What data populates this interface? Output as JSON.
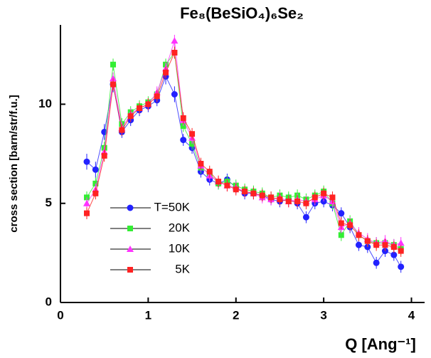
{
  "chart_data": {
    "type": "scatter",
    "title": "Fe₈(BeSiO₄)₆Se₂",
    "x_label": "Q [Ang⁻¹]",
    "y_label": "cross section [barn/str/f.u.]",
    "xlim": [
      0,
      4.15
    ],
    "ylim": [
      0,
      14
    ],
    "xticks": [
      0,
      1,
      2,
      3,
      4
    ],
    "yticks": [
      0,
      5,
      10
    ],
    "legend": "lower left",
    "x": [
      0.3,
      0.4,
      0.5,
      0.6,
      0.7,
      0.8,
      0.9,
      1.0,
      1.1,
      1.2,
      1.3,
      1.4,
      1.5,
      1.6,
      1.7,
      1.8,
      1.9,
      2.0,
      2.1,
      2.2,
      2.3,
      2.4,
      2.5,
      2.6,
      2.7,
      2.8,
      2.9,
      3.0,
      3.1,
      3.2,
      3.3,
      3.4,
      3.5,
      3.6,
      3.7,
      3.8,
      3.88
    ],
    "series": [
      {
        "name": "T=50K",
        "color": "#2222ff",
        "marker": "circle",
        "values": [
          7.1,
          6.7,
          8.6,
          11.0,
          8.6,
          9.2,
          9.7,
          9.9,
          10.2,
          11.4,
          10.5,
          8.2,
          7.8,
          6.6,
          6.2,
          6.0,
          6.2,
          5.8,
          5.5,
          5.5,
          5.4,
          5.2,
          5.1,
          5.2,
          5.0,
          4.3,
          5.0,
          5.1,
          4.9,
          4.5,
          3.8,
          2.9,
          2.8,
          2.0,
          2.6,
          2.4,
          1.8
        ],
        "errors": [
          0.4,
          0.4,
          0.4,
          0.4,
          0.3,
          0.3,
          0.3,
          0.3,
          0.3,
          0.4,
          0.4,
          0.3,
          0.3,
          0.3,
          0.3,
          0.3,
          0.3,
          0.3,
          0.3,
          0.3,
          0.3,
          0.3,
          0.3,
          0.3,
          0.3,
          0.3,
          0.3,
          0.3,
          0.3,
          0.3,
          0.3,
          0.3,
          0.3,
          0.3,
          0.3,
          0.3,
          0.3
        ]
      },
      {
        "name": "20K",
        "color": "#33ee33",
        "marker": "square",
        "values": [
          5.3,
          6.0,
          7.8,
          12.0,
          9.0,
          9.6,
          9.9,
          10.1,
          10.5,
          12.0,
          12.6,
          8.9,
          8.0,
          6.8,
          6.5,
          6.0,
          6.1,
          5.9,
          5.7,
          5.6,
          5.5,
          5.3,
          5.4,
          5.3,
          5.4,
          5.2,
          5.4,
          5.6,
          5.0,
          3.4,
          4.1,
          3.4,
          3.1,
          3.0,
          3.0,
          2.9,
          2.7
        ],
        "errors": [
          0.3,
          0.3,
          0.3,
          0.3,
          0.3,
          0.3,
          0.3,
          0.3,
          0.3,
          0.3,
          0.3,
          0.3,
          0.3,
          0.3,
          0.3,
          0.3,
          0.3,
          0.3,
          0.3,
          0.3,
          0.3,
          0.3,
          0.3,
          0.3,
          0.3,
          0.3,
          0.3,
          0.3,
          0.3,
          0.3,
          0.3,
          0.3,
          0.3,
          0.3,
          0.3,
          0.3,
          0.3
        ]
      },
      {
        "name": "10K",
        "color": "#ff33ff",
        "marker": "triangle",
        "values": [
          5.0,
          5.7,
          7.6,
          11.3,
          8.8,
          9.5,
          9.8,
          10.0,
          10.6,
          11.8,
          13.2,
          9.2,
          8.3,
          6.9,
          6.4,
          6.1,
          5.9,
          5.8,
          5.6,
          5.5,
          5.3,
          5.2,
          5.3,
          5.1,
          5.2,
          5.1,
          5.2,
          5.4,
          5.1,
          3.8,
          4.0,
          3.5,
          3.2,
          3.0,
          3.1,
          2.9,
          3.0
        ],
        "errors": [
          0.3,
          0.3,
          0.3,
          0.3,
          0.3,
          0.3,
          0.3,
          0.3,
          0.3,
          0.3,
          0.3,
          0.3,
          0.3,
          0.3,
          0.3,
          0.3,
          0.3,
          0.3,
          0.3,
          0.3,
          0.3,
          0.3,
          0.3,
          0.3,
          0.3,
          0.3,
          0.3,
          0.3,
          0.3,
          0.3,
          0.3,
          0.3,
          0.3,
          0.3,
          0.3,
          0.3,
          0.3
        ]
      },
      {
        "name": "5K",
        "color": "#ff2222",
        "marker": "square",
        "values": [
          4.5,
          5.5,
          7.4,
          11.0,
          8.7,
          9.4,
          9.8,
          10.0,
          10.4,
          11.6,
          12.6,
          9.3,
          8.5,
          7.0,
          6.6,
          6.1,
          5.9,
          5.7,
          5.6,
          5.5,
          5.4,
          5.3,
          5.2,
          5.1,
          5.1,
          5.0,
          5.3,
          5.5,
          5.3,
          4.0,
          3.9,
          3.4,
          3.1,
          2.9,
          2.9,
          2.8,
          2.6
        ],
        "errors": [
          0.3,
          0.3,
          0.3,
          0.3,
          0.3,
          0.3,
          0.3,
          0.3,
          0.3,
          0.3,
          0.3,
          0.3,
          0.3,
          0.3,
          0.3,
          0.3,
          0.3,
          0.3,
          0.3,
          0.3,
          0.3,
          0.3,
          0.3,
          0.3,
          0.3,
          0.3,
          0.3,
          0.3,
          0.3,
          0.3,
          0.3,
          0.3,
          0.3,
          0.3,
          0.3,
          0.3,
          0.3
        ]
      }
    ]
  }
}
